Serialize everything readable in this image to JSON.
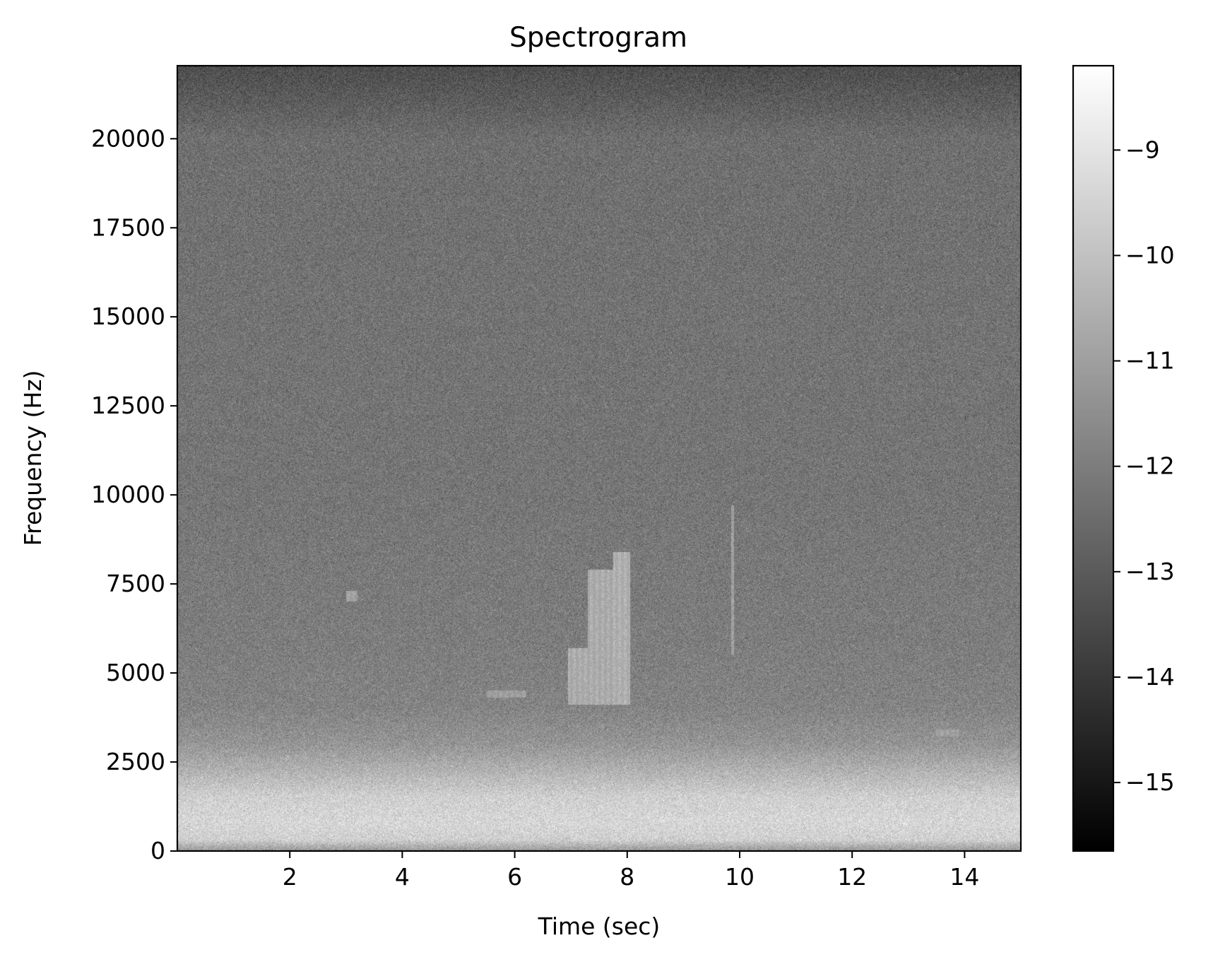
{
  "chart_data": {
    "type": "heatmap",
    "title": "Spectrogram",
    "xlabel": "Time (sec)",
    "ylabel": "Frequency (Hz)",
    "xlim": [
      0,
      15
    ],
    "ylim": [
      0,
      22050
    ],
    "xticks": [
      2,
      4,
      6,
      8,
      10,
      12,
      14
    ],
    "xtick_labels": [
      "2",
      "4",
      "6",
      "8",
      "10",
      "12",
      "14"
    ],
    "yticks": [
      0,
      2500,
      5000,
      7500,
      10000,
      12500,
      15000,
      17500,
      20000
    ],
    "ytick_labels": [
      "0",
      "2500",
      "5000",
      "7500",
      "10000",
      "12500",
      "15000",
      "17500",
      "20000"
    ],
    "colormap": "gray",
    "colorbar": {
      "range": [
        -15.65,
        -8.2
      ],
      "ticks": [
        -15,
        -14,
        -13,
        -12,
        -11,
        -10,
        -9
      ],
      "tick_labels": [
        "−15",
        "−14",
        "−13",
        "−12",
        "−11",
        "−10",
        "−9"
      ]
    },
    "background_level": {
      "freq_hz": [
        0,
        300,
        800,
        1500,
        2200,
        3000,
        4000,
        6000,
        10000,
        16000,
        20000,
        21000,
        22050
      ],
      "log_power": [
        -11.2,
        -9.6,
        -9.4,
        -9.6,
        -10.4,
        -11.3,
        -11.8,
        -12.0,
        -12.2,
        -12.3,
        -12.4,
        -12.9,
        -13.4
      ]
    },
    "features": [
      {
        "kind": "band",
        "t": [
          6.95,
          7.3
        ],
        "f": [
          4100,
          5700
        ],
        "level": -10.5
      },
      {
        "kind": "band",
        "t": [
          7.3,
          7.75
        ],
        "f": [
          4100,
          7900
        ],
        "level": -10.5
      },
      {
        "kind": "band",
        "t": [
          7.75,
          8.05
        ],
        "f": [
          4100,
          8400
        ],
        "level": -10.4
      },
      {
        "kind": "band",
        "t": [
          5.5,
          6.2
        ],
        "f": [
          4300,
          4500
        ],
        "level": -10.9
      },
      {
        "kind": "band",
        "t": [
          3.0,
          3.2
        ],
        "f": [
          7000,
          7300
        ],
        "level": -10.8
      },
      {
        "kind": "band",
        "t": [
          9.85,
          9.9
        ],
        "f": [
          5500,
          9700
        ],
        "level": -11.0
      },
      {
        "kind": "band",
        "t": [
          13.5,
          13.9
        ],
        "f": [
          3200,
          3400
        ],
        "level": -10.9
      }
    ]
  }
}
